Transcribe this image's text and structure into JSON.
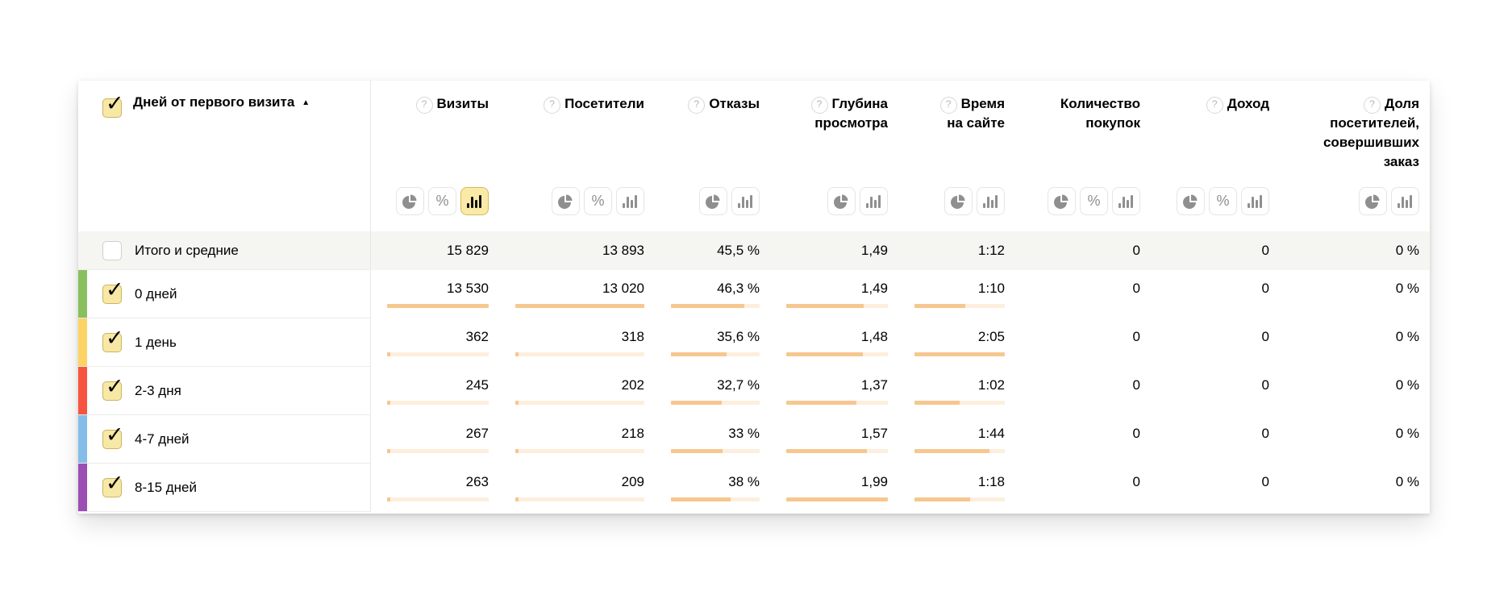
{
  "header": {
    "dimension": {
      "label": "Дней от первого визита",
      "sort_glyph": "▲",
      "checked": true
    },
    "help_glyph": "?",
    "columns": [
      {
        "id": "visits",
        "label": "Визиты",
        "help": true,
        "toggles": [
          "pie",
          "percent",
          "bars"
        ],
        "active_toggle": "bars"
      },
      {
        "id": "visitors",
        "label": "Посетители",
        "help": true,
        "toggles": [
          "pie",
          "percent",
          "bars"
        ],
        "active_toggle": null
      },
      {
        "id": "bounces",
        "label": "Отказы",
        "help": true,
        "toggles": [
          "pie",
          "bars"
        ],
        "active_toggle": null
      },
      {
        "id": "depth",
        "label": "Глубина\nпросмотра",
        "help": true,
        "toggles": [
          "pie",
          "bars"
        ],
        "active_toggle": null
      },
      {
        "id": "time_on_site",
        "label": "Время\nна сайте",
        "help": true,
        "toggles": [
          "pie",
          "bars"
        ],
        "active_toggle": null
      },
      {
        "id": "purchases",
        "label": "Количество\nпокупок",
        "help": false,
        "toggles": [
          "pie",
          "percent",
          "bars"
        ],
        "active_toggle": null
      },
      {
        "id": "revenue",
        "label": "Доход",
        "help": true,
        "toggles": [
          "pie",
          "percent",
          "bars"
        ],
        "active_toggle": null
      },
      {
        "id": "order_share",
        "label": "Доля\nпосетителей,\nсовершивших\nзаказ",
        "help": true,
        "toggles": [
          "pie",
          "bars"
        ],
        "active_toggle": null
      }
    ]
  },
  "totals_row": {
    "label": "Итого и средние",
    "checked": false,
    "values": [
      "15 829",
      "13 893",
      "45,5 %",
      "1,49",
      "1:12",
      "0",
      "0",
      "0 %"
    ]
  },
  "rows": [
    {
      "label": "0 дней",
      "color": "#88c05f",
      "checked": true,
      "values": [
        "13 530",
        "13 020",
        "46,3 %",
        "1,49",
        "1:10",
        "0",
        "0",
        "0 %"
      ],
      "bars": [
        100,
        100,
        83,
        76,
        56,
        null,
        null,
        null
      ]
    },
    {
      "label": "1 день",
      "color": "#fbd465",
      "checked": true,
      "values": [
        "362",
        "318",
        "35,6 %",
        "1,48",
        "2:05",
        "0",
        "0",
        "0 %"
      ],
      "bars": [
        2.7,
        2.5,
        63,
        75,
        100,
        null,
        null,
        null
      ]
    },
    {
      "label": "2-3 дня",
      "color": "#f75440",
      "checked": true,
      "values": [
        "245",
        "202",
        "32,7 %",
        "1,37",
        "1:02",
        "0",
        "0",
        "0 %"
      ],
      "bars": [
        1.9,
        1.6,
        57,
        69,
        50,
        null,
        null,
        null
      ]
    },
    {
      "label": "4-7 дней",
      "color": "#85bde8",
      "checked": true,
      "values": [
        "267",
        "218",
        "33 %",
        "1,57",
        "1:44",
        "0",
        "0",
        "0 %"
      ],
      "bars": [
        2.0,
        1.7,
        58,
        79,
        83,
        null,
        null,
        null
      ]
    },
    {
      "label": "8-15 дней",
      "color": "#9b4eb4",
      "checked": true,
      "values": [
        "263",
        "209",
        "38 %",
        "1,99",
        "1:18",
        "0",
        "0",
        "0 %"
      ],
      "bars": [
        2.0,
        1.6,
        67,
        100,
        62,
        null,
        null,
        null
      ]
    }
  ],
  "colors": {
    "bar_fill": "#f6c78e",
    "bar_track": "#fdeedd",
    "selected_toggle_bg": "#f9eba6",
    "selected_toggle_border": "#d6b95d",
    "checked_checkbox_bg": "#f8e8a6",
    "totals_row_bg": "#f5f5f2"
  }
}
